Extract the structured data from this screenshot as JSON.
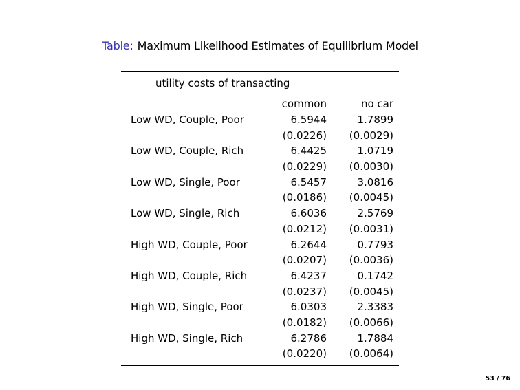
{
  "slide": {
    "title_prefix": "Table:",
    "title": "Maximum Likelihood Estimates of Equilibrium Model",
    "page_number": "53 / 76"
  },
  "colors": {
    "structure_blue": "#3333B2",
    "text": "#000000",
    "background": "#FFFFFF"
  },
  "table": {
    "section_header": "utility costs of transacting",
    "columns": [
      "common",
      "no car"
    ],
    "rows": [
      {
        "label": "Low WD, Couple, Poor",
        "common": "6.5944",
        "common_se": "(0.0226)",
        "no_car": "1.7899",
        "no_car_se": "(0.0029)"
      },
      {
        "label": "Low WD, Couple, Rich",
        "common": "6.4425",
        "common_se": "(0.0229)",
        "no_car": "1.0719",
        "no_car_se": "(0.0030)"
      },
      {
        "label": "Low WD, Single, Poor",
        "common": "6.5457",
        "common_se": "(0.0186)",
        "no_car": "3.0816",
        "no_car_se": "(0.0045)"
      },
      {
        "label": "Low WD, Single, Rich",
        "common": "6.6036",
        "common_se": "(0.0212)",
        "no_car": "2.5769",
        "no_car_se": "(0.0031)"
      },
      {
        "label": "High WD, Couple, Poor",
        "common": "6.2644",
        "common_se": "(0.0207)",
        "no_car": "0.7793",
        "no_car_se": "(0.0036)"
      },
      {
        "label": "High WD, Couple, Rich",
        "common": "6.4237",
        "common_se": "(0.0237)",
        "no_car": "0.1742",
        "no_car_se": "(0.0045)"
      },
      {
        "label": "High WD, Single, Poor",
        "common": "6.0303",
        "common_se": "(0.0182)",
        "no_car": "2.3383",
        "no_car_se": "(0.0066)"
      },
      {
        "label": "High WD, Single, Rich",
        "common": "6.2786",
        "common_se": "(0.0220)",
        "no_car": "1.7884",
        "no_car_se": "(0.0064)"
      }
    ]
  }
}
